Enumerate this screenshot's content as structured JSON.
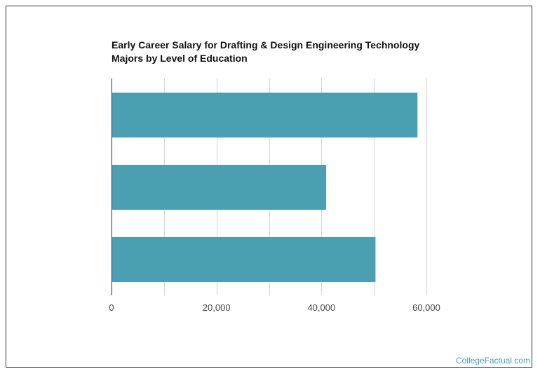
{
  "chart_data": {
    "type": "bar",
    "orientation": "horizontal",
    "title_lines": [
      "Early Career Salary for Drafting & Design Engineering Technology",
      "Majors by Level of Education"
    ],
    "categories": [
      "",
      "",
      ""
    ],
    "values": [
      58300,
      40900,
      50300
    ],
    "xlim": [
      0,
      60000
    ],
    "x_ticks": [
      0,
      20000,
      40000,
      60000
    ],
    "x_tick_labels": [
      "0",
      "20,000",
      "40,000",
      "60,000"
    ],
    "grid": true,
    "bar_color": "#4aa0b2",
    "grid_color": "#d6d6d6",
    "axis_color": "#333333"
  },
  "watermark": "CollegeFactual.com"
}
